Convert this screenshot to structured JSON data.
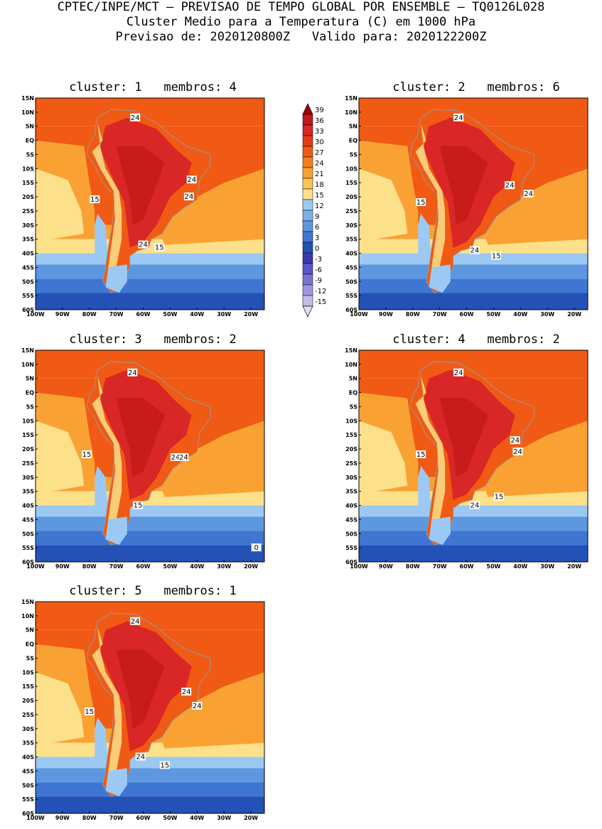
{
  "header": {
    "line1": "CPTEC/INPE/MCT — PREVISAO DE TEMPO GLOBAL POR ENSEMBLE — TQ0126L028",
    "line2": "Cluster Medio para a Temperatura (C) em 1000 hPa",
    "line3": "Previsao de: 2020120800Z   Valido para: 2020122200Z"
  },
  "panels": [
    {
      "title": "cluster: 1   membros: 4",
      "contour_labels": [
        "24",
        "24",
        "24",
        "24",
        "15",
        "15"
      ]
    },
    {
      "title": "cluster: 2   membros: 6",
      "contour_labels": [
        "24",
        "24",
        "24",
        "24",
        "15",
        "15"
      ]
    },
    {
      "title": "cluster: 3   membros: 2",
      "contour_labels": [
        "24",
        "24",
        "24",
        "15",
        "15",
        "0"
      ]
    },
    {
      "title": "cluster: 4   membros: 2",
      "contour_labels": [
        "24",
        "24",
        "24",
        "24",
        "15",
        "15"
      ]
    },
    {
      "title": "cluster: 5   membros: 1",
      "contour_labels": [
        "24",
        "24",
        "24",
        "24",
        "15",
        "15"
      ]
    }
  ],
  "axes": {
    "lat_labels": [
      "15N",
      "10N",
      "5N",
      "EQ",
      "5S",
      "10S",
      "15S",
      "20S",
      "25S",
      "30S",
      "35S",
      "40S",
      "45S",
      "50S",
      "55S",
      "60S"
    ],
    "lon_labels": [
      "100W",
      "90W",
      "80W",
      "70W",
      "60W",
      "50W",
      "40W",
      "30W",
      "20W"
    ]
  },
  "legend": {
    "labels": [
      "39",
      "36",
      "33",
      "30",
      "27",
      "24",
      "21",
      "18",
      "15",
      "12",
      "9",
      "6",
      "3",
      "0",
      "-3",
      "-6",
      "-9",
      "-12",
      "-15"
    ],
    "colors": [
      "#a00000",
      "#c11818",
      "#d92626",
      "#e33a14",
      "#f05a14",
      "#f47d1c",
      "#f9a233",
      "#fbc456",
      "#fde08a",
      "#9cc9f3",
      "#7ab0ea",
      "#5d97e0",
      "#3f76d2",
      "#2451b6",
      "#3b3ab0",
      "#5a55c8",
      "#7c72d4",
      "#a295df",
      "#c6bae9",
      "#e6ddf5"
    ]
  },
  "colors": {
    "ocean_warm": "#f05a14",
    "land_hot": "#d92626",
    "land_core": "#c11818",
    "ocean_mid": "#f9a233",
    "ocean_cool": "#fde08a",
    "sea_blue1": "#9cc9f3",
    "sea_blue2": "#5d97e0",
    "sea_blue3": "#3f76d2",
    "sea_blue4": "#2451b6"
  }
}
